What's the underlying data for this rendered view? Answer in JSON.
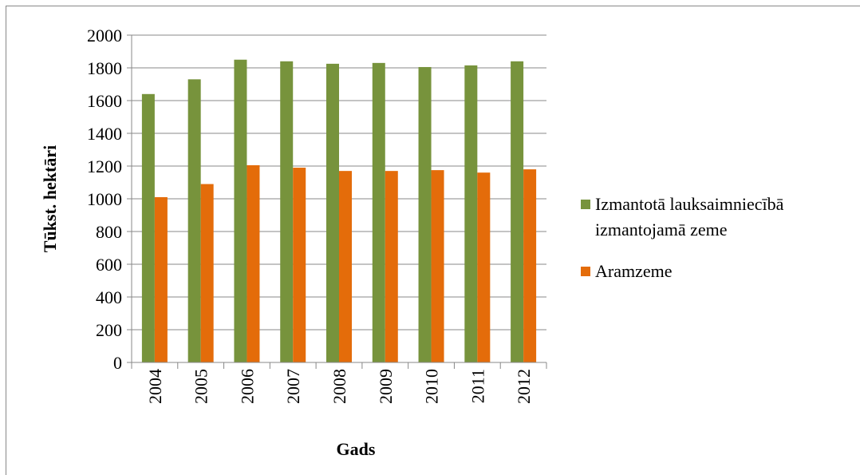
{
  "chart_data": {
    "type": "bar",
    "categories": [
      "2004",
      "2005",
      "2006",
      "2007",
      "2008",
      "2009",
      "2010",
      "2011",
      "2012"
    ],
    "series": [
      {
        "name": "Izmantotā lauksaimniecībā izmantojamā zeme",
        "color": "#77933c",
        "values": [
          1640,
          1730,
          1850,
          1840,
          1825,
          1830,
          1805,
          1815,
          1840
        ]
      },
      {
        "name": "Aramzeme",
        "color": "#e46c0a",
        "values": [
          1010,
          1090,
          1205,
          1190,
          1170,
          1170,
          1175,
          1160,
          1180
        ]
      }
    ],
    "xlabel": "Gads",
    "ylabel": "Tūkst. hektāri",
    "ylim": [
      0,
      2000
    ],
    "yticks": [
      0,
      200,
      400,
      600,
      800,
      1000,
      1200,
      1400,
      1600,
      1800,
      2000
    ],
    "grid": true,
    "legend": "right"
  }
}
